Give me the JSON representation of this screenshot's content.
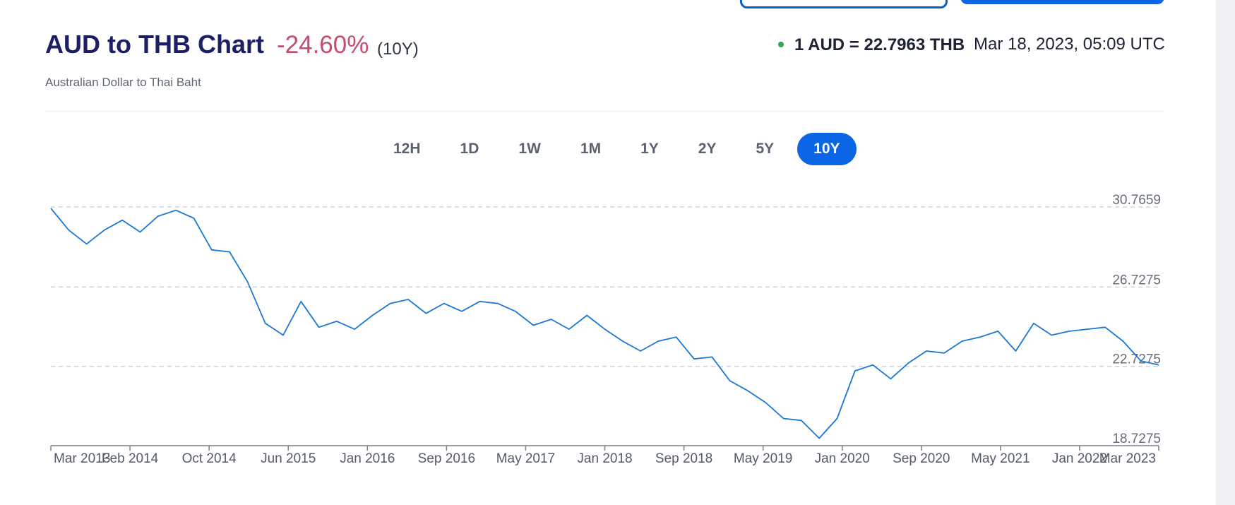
{
  "header": {
    "title": "AUD to THB Chart",
    "change": "-24.60%",
    "period": "(10Y)",
    "subtitle": "Australian Dollar to Thai Baht",
    "rate": "1 AUD = 22.7963 THB",
    "timestamp": "Mar 18, 2023, 05:09 UTC"
  },
  "range_tabs": [
    {
      "label": "12H",
      "active": false
    },
    {
      "label": "1D",
      "active": false
    },
    {
      "label": "1W",
      "active": false
    },
    {
      "label": "1M",
      "active": false
    },
    {
      "label": "1Y",
      "active": false
    },
    {
      "label": "2Y",
      "active": false
    },
    {
      "label": "5Y",
      "active": false
    },
    {
      "label": "10Y",
      "active": true
    }
  ],
  "colors": {
    "line": "#1a78d4",
    "accent": "#0a66e4",
    "change_negative": "#c64c6c",
    "title": "#1a1f66",
    "status_live": "#2fa84f"
  },
  "chart_data": {
    "type": "line",
    "title": "AUD to THB Chart",
    "xlabel": "",
    "ylabel": "",
    "y_ticks": [
      "30.7659",
      "26.7275",
      "22.7275",
      "18.7275"
    ],
    "ylim": [
      18.7275,
      30.7659
    ],
    "x_ticks": [
      "Mar 2013",
      "Feb 2014",
      "Oct 2014",
      "Jun 2015",
      "Jan 2016",
      "Sep 2016",
      "May 2017",
      "Jan 2018",
      "Sep 2018",
      "May 2019",
      "Jan 2020",
      "Sep 2020",
      "May 2021",
      "Jan 2022",
      "Mar 2023"
    ],
    "grid": true,
    "series": [
      {
        "x": [
          "2013-03",
          "2013-05",
          "2013-07",
          "2013-08",
          "2013-10",
          "2013-12",
          "2014-02",
          "2014-04",
          "2014-06",
          "2014-08",
          "2014-10",
          "2014-12",
          "2015-02",
          "2015-04",
          "2015-06",
          "2015-07",
          "2015-09",
          "2015-11",
          "2016-01",
          "2016-03",
          "2016-05",
          "2016-07",
          "2016-09",
          "2016-11",
          "2017-01",
          "2017-03",
          "2017-05",
          "2017-07",
          "2017-09",
          "2017-11",
          "2018-01",
          "2018-03",
          "2018-05",
          "2018-07",
          "2018-09",
          "2018-11",
          "2019-01",
          "2019-03",
          "2019-05",
          "2019-07",
          "2019-09",
          "2019-11",
          "2020-01",
          "2020-03",
          "2020-04",
          "2020-06",
          "2020-08",
          "2020-10",
          "2020-12",
          "2021-02",
          "2021-04",
          "2021-06",
          "2021-08",
          "2021-10",
          "2021-12",
          "2022-02",
          "2022-04",
          "2022-06",
          "2022-08",
          "2022-10",
          "2022-12",
          "2023-02",
          "2023-03"
        ],
        "y": [
          30.7,
          29.6,
          28.9,
          29.6,
          30.1,
          29.5,
          30.3,
          30.6,
          30.2,
          28.6,
          28.5,
          27.0,
          24.9,
          24.3,
          26.0,
          24.7,
          25.0,
          24.6,
          25.3,
          25.9,
          26.1,
          25.4,
          25.9,
          25.5,
          26.0,
          25.9,
          25.5,
          24.8,
          25.1,
          24.6,
          25.3,
          24.6,
          24.0,
          23.5,
          24.0,
          24.2,
          23.1,
          23.2,
          22.0,
          21.5,
          20.9,
          20.1,
          20.0,
          19.1,
          20.1,
          22.5,
          22.8,
          22.1,
          22.9,
          23.5,
          23.4,
          24.0,
          24.2,
          24.5,
          23.5,
          24.9,
          24.3,
          24.5,
          24.6,
          24.7,
          24.0,
          23.0,
          22.8
        ]
      }
    ]
  }
}
